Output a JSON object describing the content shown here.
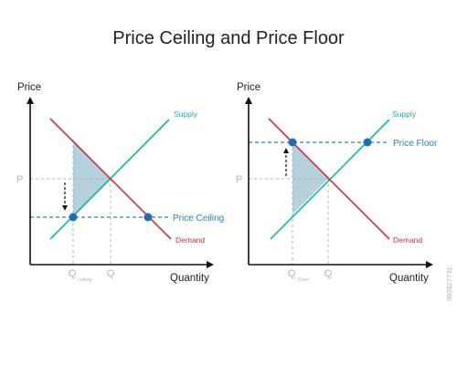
{
  "title": "Price Ceiling and Price Floor",
  "colors": {
    "supply": "#19b39b",
    "demand": "#c8323c",
    "price_line": "#2a7fbf",
    "dot": "#1e6fb3",
    "shade": "#8fb8cc",
    "axis": "#111111",
    "guide": "#b3b3b3"
  },
  "left_panel": {
    "y_axis_label": "Price",
    "x_axis_label": "Quantity",
    "supply_label": "Supply",
    "demand_label": "Demand",
    "equilibrium_price_label": "P",
    "equilibrium_quantity_label": "Q",
    "shifted_quantity_main": "Q",
    "shifted_quantity_sub": "ceiling",
    "control_label": "Price Ceiling"
  },
  "right_panel": {
    "y_axis_label": "Price",
    "x_axis_label": "Quantity",
    "supply_label": "Supply",
    "demand_label": "Demand",
    "equilibrium_price_label": "P",
    "equilibrium_quantity_label": "Q",
    "shifted_quantity_main": "Q",
    "shifted_quantity_sub": "Floor",
    "control_label": "Price Floor"
  },
  "watermark": {
    "vertical_id": "983527731"
  }
}
